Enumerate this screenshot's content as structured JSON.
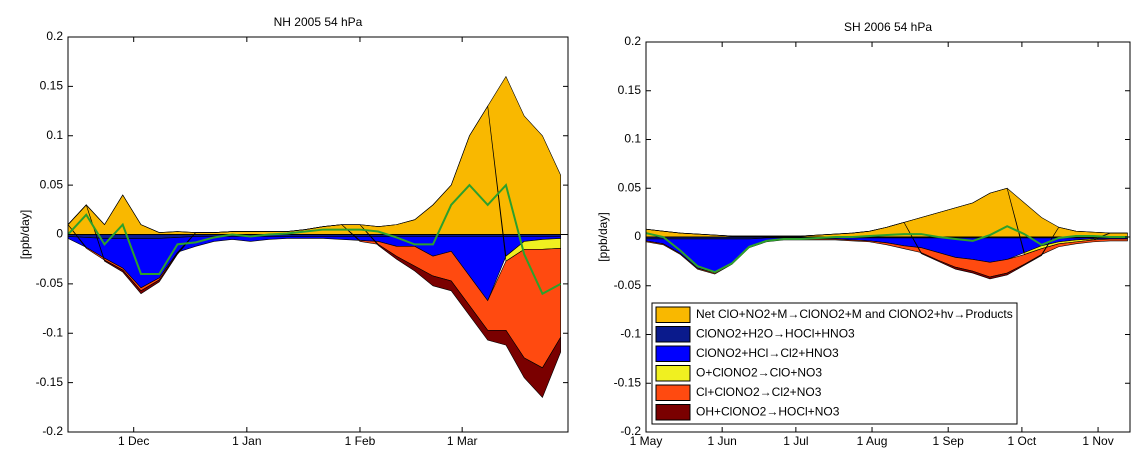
{
  "chart_data": [
    {
      "type": "area",
      "title": "NH 2005 54 hPa",
      "y_label": "[ppb/day]",
      "x": [
        -18,
        -13,
        -8,
        -3,
        2,
        7,
        12,
        17,
        22,
        27,
        32,
        37,
        42,
        47,
        52,
        57,
        62,
        67,
        72,
        77,
        82,
        87,
        92,
        97,
        102,
        107,
        112,
        117
      ],
      "xlim": [
        -18,
        119
      ],
      "xticks": [
        {
          "value": 0,
          "label": "1 Dec"
        },
        {
          "value": 31,
          "label": "1 Jan"
        },
        {
          "value": 62,
          "label": "1 Feb"
        },
        {
          "value": 90,
          "label": "1 Mar"
        }
      ],
      "ylim": [
        -0.2,
        0.2
      ],
      "yticks": [
        -0.2,
        -0.15,
        -0.1,
        -0.05,
        0,
        0.05,
        0.1,
        0.15,
        0.2
      ],
      "series": [
        {
          "color": "#f9b800",
          "values": [
            0.01,
            0.03,
            0.01,
            0.04,
            0.01,
            0.002,
            0.003,
            0.002,
            0.002,
            0.003,
            0.003,
            0.003,
            0.003,
            0.005,
            0.008,
            0.01,
            0.01,
            0.008,
            0.01,
            0.015,
            0.03,
            0.05,
            0.1,
            0.13,
            0.16,
            0.12,
            0.1,
            0.06
          ]
        },
        {
          "color": "#0a1a8c",
          "values": [
            -0.002,
            -0.003,
            -0.004,
            -0.004,
            -0.004,
            -0.004,
            -0.003,
            -0.002,
            -0.002,
            -0.002,
            -0.002,
            -0.002,
            -0.002,
            -0.002,
            -0.002,
            -0.002,
            -0.002,
            -0.002,
            -0.002,
            -0.002,
            -0.002,
            -0.002,
            -0.002,
            -0.002,
            -0.002,
            -0.002,
            -0.002,
            -0.002
          ]
        },
        {
          "color": "#0000ff",
          "values": [
            -0.002,
            -0.01,
            -0.02,
            -0.03,
            -0.05,
            -0.04,
            -0.015,
            -0.01,
            -0.005,
            -0.003,
            -0.005,
            -0.003,
            -0.002,
            -0.002,
            -0.002,
            -0.003,
            -0.004,
            -0.005,
            -0.01,
            -0.01,
            -0.02,
            -0.015,
            -0.04,
            -0.065,
            -0.02,
            -0.005,
            -0.003,
            -0.002
          ]
        },
        {
          "color": "#f0f020",
          "values": [
            0,
            0,
            0,
            0,
            0,
            0,
            0,
            0,
            0,
            0,
            0,
            0,
            0,
            0,
            0,
            0,
            0,
            0,
            0,
            0,
            0,
            0,
            0,
            0,
            -0.005,
            -0.008,
            -0.01,
            -0.01
          ]
        },
        {
          "color": "#ff4a10",
          "values": [
            0,
            -0.001,
            -0.002,
            -0.002,
            -0.003,
            -0.002,
            -0.001,
            0,
            0,
            0,
            0,
            0,
            0,
            0,
            0,
            0,
            -0.001,
            -0.003,
            -0.01,
            -0.02,
            -0.02,
            -0.03,
            -0.03,
            -0.03,
            -0.07,
            -0.11,
            -0.12,
            -0.09
          ]
        },
        {
          "color": "#7a0000",
          "values": [
            0,
            0,
            -0.001,
            -0.002,
            -0.003,
            -0.002,
            -0.001,
            0,
            0,
            0,
            0,
            0,
            0,
            0,
            0,
            0,
            0,
            -0.001,
            -0.003,
            -0.005,
            -0.01,
            -0.01,
            -0.01,
            -0.01,
            -0.015,
            -0.02,
            -0.03,
            -0.015
          ]
        },
        {
          "type": "line",
          "color": "#2ca02c",
          "values": [
            0,
            0.02,
            -0.01,
            0.01,
            -0.04,
            -0.04,
            -0.01,
            -0.008,
            -0.003,
            0,
            -0.002,
            0,
            0.001,
            0.003,
            0.005,
            0.005,
            0.005,
            0.003,
            -0.003,
            -0.01,
            -0.01,
            0.03,
            0.05,
            0.03,
            0.05,
            -0.02,
            -0.06,
            -0.05
          ]
        }
      ]
    },
    {
      "type": "area",
      "title": "SH 2006 54 hPa",
      "y_label": "[ppb/day]",
      "x": [
        0,
        7,
        14,
        21,
        28,
        35,
        42,
        49,
        56,
        63,
        70,
        77,
        84,
        91,
        98,
        105,
        112,
        119,
        126,
        133,
        140,
        147,
        154,
        161,
        168,
        175,
        182,
        189,
        196
      ],
      "xlim": [
        0,
        197
      ],
      "xticks": [
        {
          "value": 0,
          "label": "1 May"
        },
        {
          "value": 31,
          "label": "1 Jun"
        },
        {
          "value": 61,
          "label": "1 Jul"
        },
        {
          "value": 92,
          "label": "1 Aug"
        },
        {
          "value": 123,
          "label": "1 Sep"
        },
        {
          "value": 153,
          "label": "1 Oct"
        },
        {
          "value": 184,
          "label": "1 Nov"
        }
      ],
      "ylim": [
        -0.2,
        0.2
      ],
      "yticks": [
        -0.2,
        -0.15,
        -0.1,
        -0.05,
        0,
        0.05,
        0.1,
        0.15,
        0.2
      ],
      "legend": "lower-left",
      "series": [
        {
          "name": "Net ClO+NO2+M→ClONO2+M and ClONO2+hv→Products",
          "color": "#f9b800",
          "values": [
            0.008,
            0.006,
            0.004,
            0.003,
            0.002,
            0.001,
            0.001,
            0.001,
            0.001,
            0.001,
            0.002,
            0.003,
            0.004,
            0.006,
            0.01,
            0.015,
            0.02,
            0.025,
            0.03,
            0.035,
            0.045,
            0.05,
            0.035,
            0.02,
            0.01,
            0.006,
            0.005,
            0.004,
            0.004
          ]
        },
        {
          "name": "ClONO2+H2O→HOCl+HNO3",
          "color": "#0a1a8c",
          "values": [
            -0.002,
            -0.002,
            -0.002,
            -0.002,
            -0.002,
            -0.002,
            -0.002,
            -0.001,
            -0.001,
            -0.001,
            -0.001,
            -0.001,
            -0.001,
            -0.001,
            -0.001,
            -0.001,
            -0.001,
            -0.001,
            -0.001,
            -0.001,
            -0.001,
            -0.001,
            -0.001,
            -0.001,
            -0.001,
            -0.001,
            -0.001,
            -0.001,
            -0.001
          ]
        },
        {
          "name": "ClONO2+HCl→Cl2+HNO3",
          "color": "#0000ff",
          "values": [
            -0.002,
            -0.005,
            -0.015,
            -0.03,
            -0.035,
            -0.025,
            -0.008,
            -0.003,
            -0.001,
            -0.001,
            -0.001,
            -0.001,
            -0.002,
            -0.003,
            -0.005,
            -0.008,
            -0.01,
            -0.015,
            -0.02,
            -0.022,
            -0.025,
            -0.022,
            -0.015,
            -0.008,
            -0.004,
            -0.002,
            -0.001,
            -0.001,
            -0.001
          ]
        },
        {
          "name": "O+ClONO2→ClO+NO3",
          "color": "#f0f020",
          "values": [
            0,
            0,
            0,
            0,
            0,
            0,
            0,
            0,
            0,
            0,
            0,
            0,
            0,
            0,
            0,
            0,
            0,
            0,
            0,
            0,
            0,
            0,
            -0.002,
            -0.003,
            -0.002,
            -0.002,
            -0.001,
            0,
            0
          ]
        },
        {
          "name": "Cl+ClONO2→Cl2+NO3",
          "color": "#ff4a10",
          "values": [
            -0.001,
            -0.001,
            -0.001,
            -0.001,
            -0.001,
            -0.001,
            -0.001,
            -0.001,
            -0.001,
            -0.001,
            -0.001,
            -0.001,
            -0.001,
            -0.001,
            -0.002,
            -0.003,
            -0.005,
            -0.008,
            -0.01,
            -0.012,
            -0.015,
            -0.014,
            -0.01,
            -0.006,
            -0.003,
            -0.002,
            -0.002,
            -0.002,
            -0.002
          ]
        },
        {
          "name": "OH+ClONO2→HOCl+NO3",
          "color": "#7a0000",
          "values": [
            0,
            0,
            0,
            0,
            0,
            0,
            0,
            0,
            0,
            0,
            0,
            0,
            0,
            0,
            0,
            0,
            -0.001,
            -0.001,
            -0.002,
            -0.002,
            -0.002,
            -0.002,
            -0.001,
            -0.001,
            0,
            0,
            0,
            0,
            0
          ]
        },
        {
          "type": "line",
          "color": "#2ca02c",
          "values": [
            0.004,
            0,
            -0.014,
            -0.03,
            -0.036,
            -0.027,
            -0.01,
            -0.004,
            -0.002,
            -0.002,
            -0.001,
            0,
            0,
            0.001,
            0.002,
            0.003,
            0.003,
            0,
            -0.002,
            -0.004,
            0.002,
            0.011,
            0.003,
            -0.008,
            -0.001,
            0.001,
            0.001,
            0,
            0
          ]
        }
      ]
    }
  ]
}
